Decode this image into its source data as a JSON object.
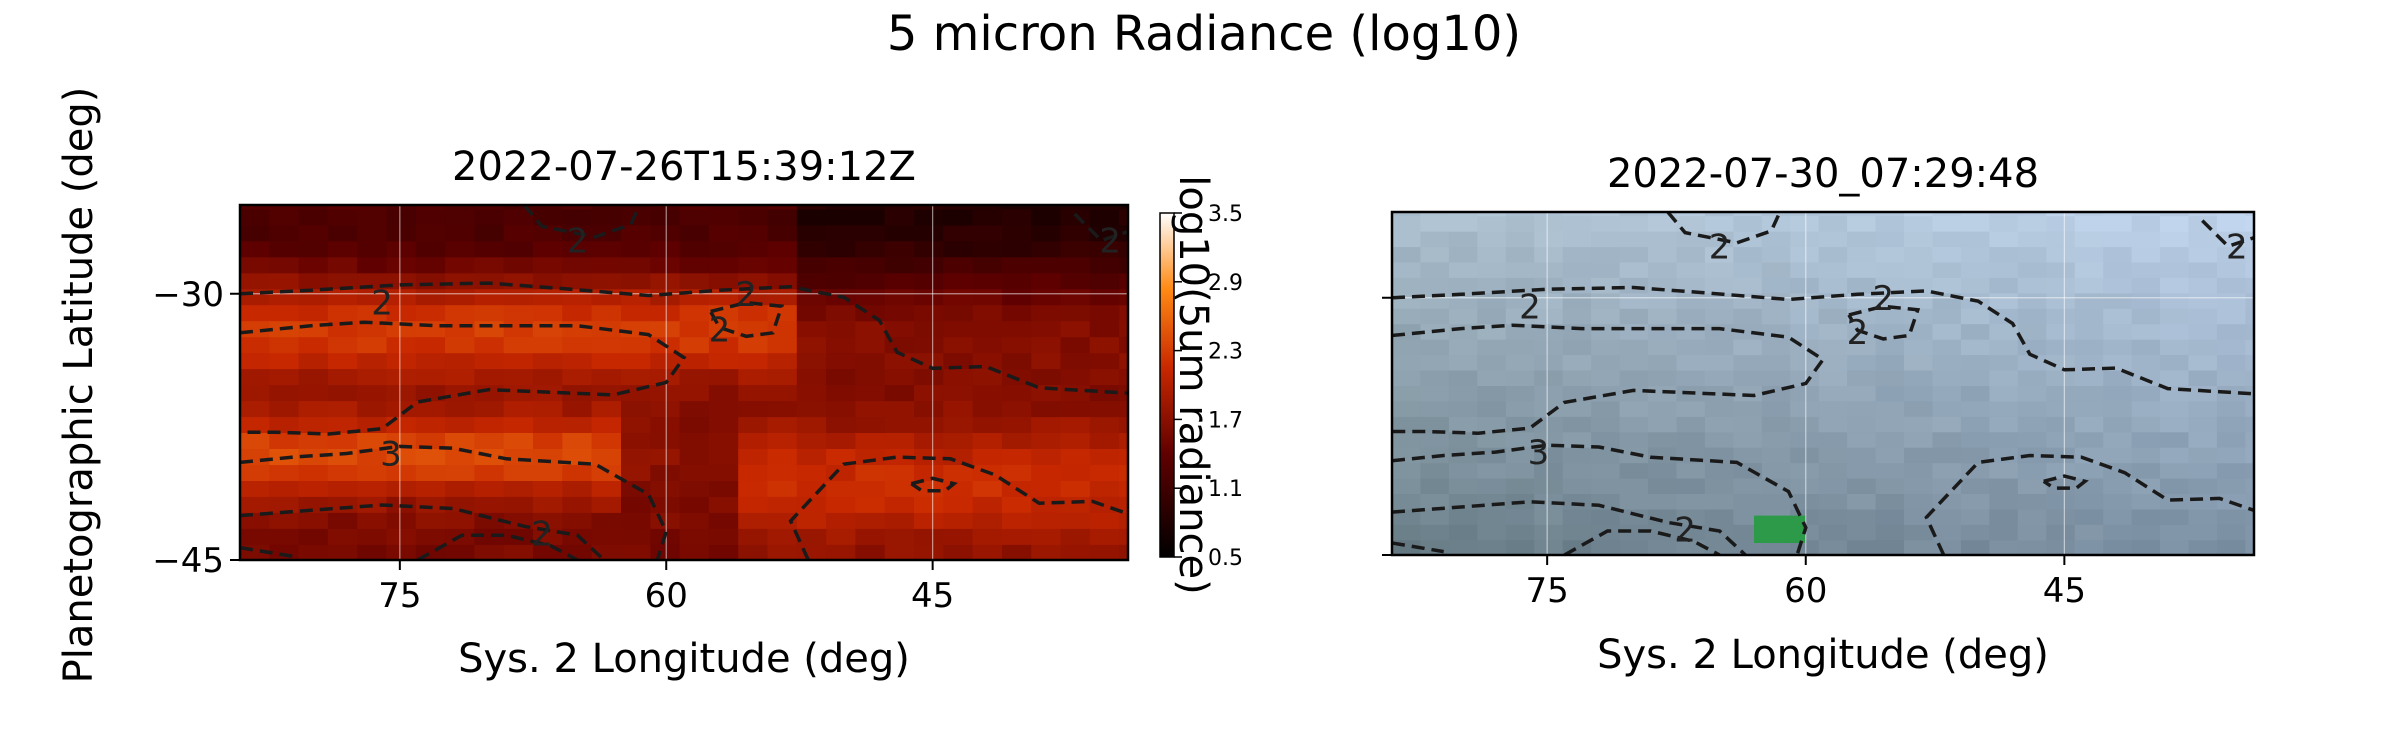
{
  "figure": {
    "title": "5 micron Radiance (log10)"
  },
  "chart_data": [
    {
      "type": "heatmap",
      "title": "2022-07-26T15:39:12Z",
      "xlabel": "Sys. 2 Longitude (deg)",
      "ylabel": "Planetographic Latitude (deg)",
      "xlim": [
        84,
        34
      ],
      "ylim": [
        -45,
        -25
      ],
      "x_ticks": [
        75,
        60,
        45
      ],
      "x_tick_labels": [
        "75",
        "60",
        "45"
      ],
      "y_ticks": [
        -30,
        -45
      ],
      "y_tick_labels": [
        "−30",
        "−45"
      ],
      "grid": true,
      "colormap": "gist_heat",
      "colorbar": {
        "label": "log10(5um radiance)",
        "range": [
          0.5,
          3.5
        ],
        "ticks": [
          0.5,
          1.1,
          1.7,
          2.3,
          2.9,
          3.5
        ],
        "tick_labels": [
          "0.5",
          "1.1",
          "1.7",
          "2.3",
          "2.9",
          "3.5"
        ]
      },
      "contour_labels": [
        {
          "text": "2",
          "lon": 65,
          "lat": -27
        },
        {
          "text": "2",
          "lon": 76,
          "lat": -30.5
        },
        {
          "text": "2",
          "lon": 55.5,
          "lat": -30
        },
        {
          "text": "2",
          "lon": 57,
          "lat": -32
        },
        {
          "text": "3",
          "lon": 75.5,
          "lat": -39
        },
        {
          "text": "2",
          "lon": 67,
          "lat": -43.5
        },
        {
          "text": "2",
          "lon": 35,
          "lat": -27
        }
      ]
    },
    {
      "type": "heatmap",
      "title": "2022-07-30_07:29:48",
      "xlabel": "Sys. 2 Longitude (deg)",
      "ylabel": "",
      "xlim": [
        84,
        34
      ],
      "ylim": [
        -45,
        -25
      ],
      "x_ticks": [
        75,
        60,
        45
      ],
      "x_tick_labels": [
        "75",
        "60",
        "45"
      ],
      "grid": true,
      "colormap": "true-color",
      "contour_labels": [
        {
          "text": "2",
          "lon": 65,
          "lat": -27
        },
        {
          "text": "2",
          "lon": 76,
          "lat": -30.5
        },
        {
          "text": "2",
          "lon": 55.5,
          "lat": -30
        },
        {
          "text": "2",
          "lon": 57,
          "lat": -32
        },
        {
          "text": "3",
          "lon": 75.5,
          "lat": -39
        },
        {
          "text": "2",
          "lon": 67,
          "lat": -43.5
        },
        {
          "text": "2",
          "lon": 35,
          "lat": -27
        }
      ]
    }
  ]
}
